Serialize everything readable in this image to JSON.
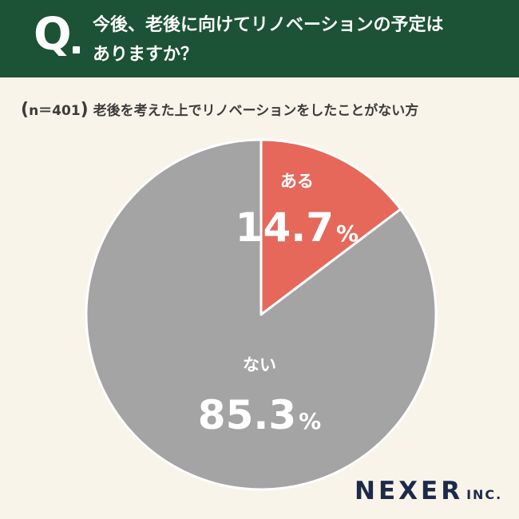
{
  "header": {
    "q_letter": "Q",
    "question_line1": "今後、老後に向けてリノベーションの予定は",
    "question_line2": "ありますか？"
  },
  "sample_note": {
    "sample_size": "n＝401",
    "description": "老後を考えた上でリノベーションをしたことがない方"
  },
  "chart_data": {
    "type": "pie",
    "categories": [
      "ある",
      "ない"
    ],
    "values": [
      14.7,
      85.3
    ],
    "value_labels": [
      "14.7",
      "85.3"
    ],
    "unit": "%",
    "start_angle_deg": 0,
    "direction": "clockwise",
    "colors": [
      "#e5685b",
      "#a4a4a4"
    ],
    "title": ""
  },
  "logo": {
    "name": "NEXER",
    "suffix": "INC."
  }
}
